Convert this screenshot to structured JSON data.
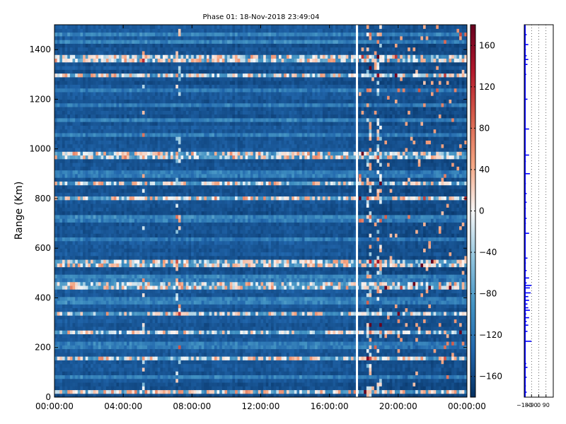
{
  "chart_data": [
    {
      "type": "heatmap",
      "title": "Phase 01: 18-Nov-2018 23:49:04",
      "xlabel": "",
      "ylabel": "Range (Km)",
      "x_range_hours": [
        0,
        24
      ],
      "x_ticks": [
        "00:00:00",
        "04:00:00",
        "08:00:00",
        "12:00:00",
        "16:00:00",
        "20:00:00",
        "00:00:00"
      ],
      "y_range": [
        0,
        1500
      ],
      "y_ticks": [
        0,
        200,
        400,
        600,
        800,
        1000,
        1200,
        1400
      ],
      "colormap": [
        "#053061",
        "#2166ac",
        "#4393c3",
        "#92c5de",
        "#f7f7f7",
        "#f4a582",
        "#d6604d",
        "#b2182b",
        "#67001f"
      ],
      "value_range": [
        -180,
        180
      ],
      "background_level": -150,
      "colorbar_ticks": [
        -160,
        -120,
        -80,
        -40,
        0,
        40,
        80,
        120,
        160
      ],
      "gap_hours": 17.6,
      "bright_range_bands_km": [
        20,
        160,
        265,
        340,
        450,
        540,
        800,
        860,
        975,
        1300,
        1360,
        1375
      ],
      "secondary_bands_km": [
        80,
        210,
        390,
        480,
        640,
        720,
        900,
        1060,
        1120,
        1180,
        1240,
        1430,
        1460
      ],
      "bright_vertical_columns_hours": [
        5.1,
        7.1,
        18.2,
        18.8
      ]
    },
    {
      "type": "line",
      "title": "",
      "xlabel": "",
      "ylabel": "",
      "x_ticks": [
        "-180",
        "-90",
        "0",
        "90"
      ],
      "x_range": [
        -180,
        180
      ],
      "y_range": [
        0,
        1500
      ],
      "grid": true,
      "series_color": "#0000ff",
      "baseline": -180,
      "profile": [
        [
          20,
          -150
        ],
        [
          45,
          -160
        ],
        [
          80,
          -150
        ],
        [
          120,
          -140
        ],
        [
          135,
          -155
        ],
        [
          160,
          -170
        ],
        [
          185,
          -170
        ],
        [
          225,
          -90
        ],
        [
          265,
          -140
        ],
        [
          290,
          -130
        ],
        [
          305,
          -150
        ],
        [
          320,
          -120
        ],
        [
          335,
          -155
        ],
        [
          350,
          -110
        ],
        [
          360,
          -130
        ],
        [
          375,
          -140
        ],
        [
          390,
          -120
        ],
        [
          405,
          -130
        ],
        [
          420,
          -100
        ],
        [
          440,
          -110
        ],
        [
          450,
          -90
        ],
        [
          460,
          -150
        ],
        [
          480,
          -120
        ],
        [
          510,
          -150
        ],
        [
          540,
          -160
        ],
        [
          560,
          -140
        ],
        [
          610,
          -170
        ],
        [
          660,
          -120
        ],
        [
          700,
          -160
        ],
        [
          720,
          -150
        ],
        [
          760,
          -160
        ],
        [
          785,
          -150
        ],
        [
          820,
          -150
        ],
        [
          860,
          -160
        ],
        [
          900,
          -110
        ],
        [
          950,
          -160
        ],
        [
          975,
          -120
        ],
        [
          990,
          -160
        ],
        [
          1080,
          -120
        ],
        [
          1200,
          -140
        ],
        [
          1300,
          -155
        ],
        [
          1340,
          -140
        ],
        [
          1360,
          -130
        ],
        [
          1375,
          -150
        ],
        [
          1400,
          -160
        ],
        [
          1420,
          -130
        ],
        [
          1460,
          -150
        ],
        [
          1490,
          -170
        ]
      ]
    }
  ]
}
